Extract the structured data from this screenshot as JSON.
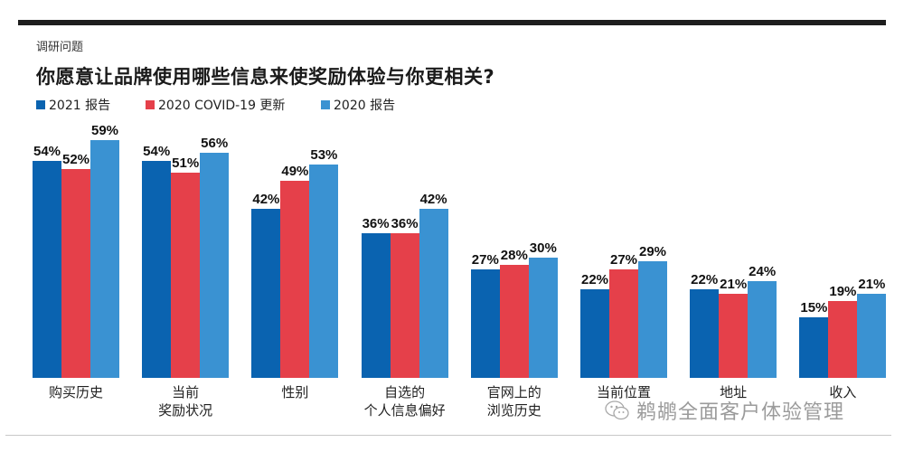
{
  "header": {
    "eyebrow": "调研问题",
    "title": "你愿意让品牌使用哪些信息来使奖励体验与你更相关?"
  },
  "legend": [
    {
      "label": "2021 报告",
      "color": "#0a63b0"
    },
    {
      "label": "2020 COVID-19 更新",
      "color": "#e5404a"
    },
    {
      "label": "2020 报告",
      "color": "#3a92d2"
    }
  ],
  "watermark": {
    "text": "鹈鹕全面客户体验管理",
    "icon": "wechat-icon"
  },
  "chart_data": {
    "type": "bar",
    "title": "你愿意让品牌使用哪些信息来使奖励体验与你更相关?",
    "subtitle": "调研问题",
    "xlabel": "",
    "ylabel": "",
    "ylim": [
      0,
      60
    ],
    "grid": false,
    "legend_position": "top-left",
    "categories": [
      "购买历史",
      "当前\n奖励状况",
      "性别",
      "自选的\n个人信息偏好",
      "官网上的\n浏览历史",
      "当前位置",
      "地址",
      "收入"
    ],
    "series": [
      {
        "name": "2021 报告",
        "color": "#0a63b0",
        "values": [
          54,
          54,
          42,
          36,
          27,
          22,
          22,
          15
        ]
      },
      {
        "name": "2020 COVID-19 更新",
        "color": "#e5404a",
        "values": [
          52,
          51,
          49,
          36,
          28,
          27,
          21,
          19
        ]
      },
      {
        "name": "2020 报告",
        "color": "#3a92d2",
        "values": [
          59,
          56,
          53,
          42,
          30,
          29,
          24,
          21
        ]
      }
    ],
    "value_suffix": "%"
  }
}
